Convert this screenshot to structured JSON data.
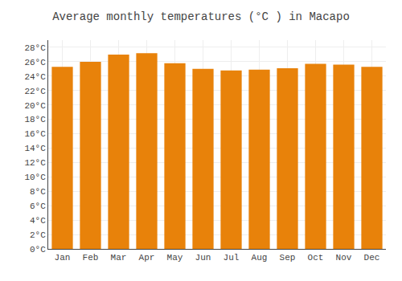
{
  "chart_data": {
    "type": "bar",
    "title": "Average monthly temperatures (°C ) in Macapo",
    "categories": [
      "Jan",
      "Feb",
      "Mar",
      "Apr",
      "May",
      "Jun",
      "Jul",
      "Aug",
      "Sep",
      "Oct",
      "Nov",
      "Dec"
    ],
    "values": [
      25.3,
      26.0,
      27.0,
      27.2,
      25.8,
      25.0,
      24.8,
      24.9,
      25.1,
      25.7,
      25.6,
      25.3
    ],
    "color": "#E8820A",
    "ylim": [
      0,
      29
    ],
    "yticks": [
      {
        "value": 0,
        "label": "0°C"
      },
      {
        "value": 2,
        "label": "2°C"
      },
      {
        "value": 4,
        "label": "4°C"
      },
      {
        "value": 6,
        "label": "6°C"
      },
      {
        "value": 8,
        "label": "8°C"
      },
      {
        "value": 10,
        "label": "10°C"
      },
      {
        "value": 12,
        "label": "12°C"
      },
      {
        "value": 14,
        "label": "14°C"
      },
      {
        "value": 16,
        "label": "16°C"
      },
      {
        "value": 18,
        "label": "18°C"
      },
      {
        "value": 20,
        "label": "20°C"
      },
      {
        "value": 22,
        "label": "22°C"
      },
      {
        "value": 24,
        "label": "24°C"
      },
      {
        "value": 26,
        "label": "26°C"
      },
      {
        "value": 28,
        "label": "28°C"
      }
    ],
    "grid": true
  }
}
